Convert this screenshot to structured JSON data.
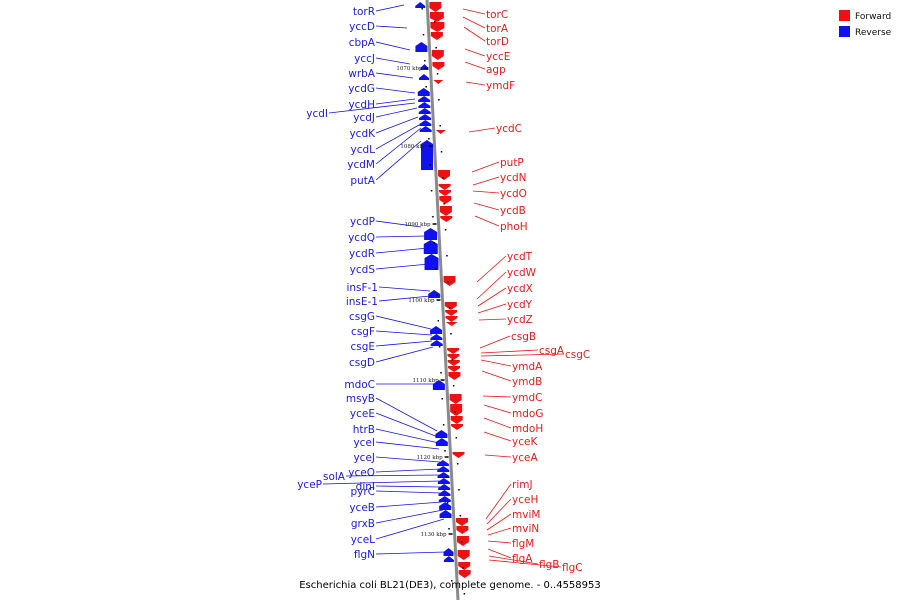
{
  "caption": "Escherichia coli BL21(DE3), complete genome. - 0..4558953",
  "legend": [
    {
      "label": "Forward",
      "color": "#ee1111"
    },
    {
      "label": "Reverse",
      "color": "#1111ee"
    }
  ],
  "colors": {
    "forward": "#ee1111",
    "reverse": "#1111ee",
    "backbone": "#888888"
  },
  "kbp_marks": [
    "1070 kbp",
    "1080 kbp",
    "1090 kbp",
    "1100 kbp",
    "1110 kbp",
    "1120 kbp",
    "1130 kbp"
  ],
  "reverse_genes": [
    "torR",
    "yccD",
    "cbpA",
    "yccJ",
    "wrbA",
    "ycdG",
    "ycdH",
    "ycdI",
    "ycdJ",
    "ycdK",
    "ycdL",
    "ycdM",
    "putA",
    "ycdP",
    "ycdQ",
    "ycdR",
    "ycdS",
    "insF-1",
    "insE-1",
    "csgG",
    "csgF",
    "csgE",
    "csgD",
    "mdoC",
    "msyB",
    "yceE",
    "htrB",
    "yceI",
    "yceJ",
    "yceO",
    "solA",
    "yceP",
    "dinI",
    "pyrC",
    "yceB",
    "grxB",
    "yceL",
    "flgN"
  ],
  "forward_genes": [
    "torC",
    "torA",
    "torD",
    "yccE",
    "agp",
    "ymdF",
    "ycdC",
    "putP",
    "ycdN",
    "ycdO",
    "ycdB",
    "phoH",
    "ycdT",
    "ycdW",
    "ycdX",
    "ycdY",
    "ycdZ",
    "csgB",
    "csgA",
    "csgC",
    "ymdA",
    "ymdB",
    "ymdC",
    "mdoG",
    "mdoH",
    "yceK",
    "yceA",
    "rimJ",
    "yceH",
    "mviM",
    "mviN",
    "flgM",
    "flgA",
    "flgB",
    "flgC"
  ]
}
